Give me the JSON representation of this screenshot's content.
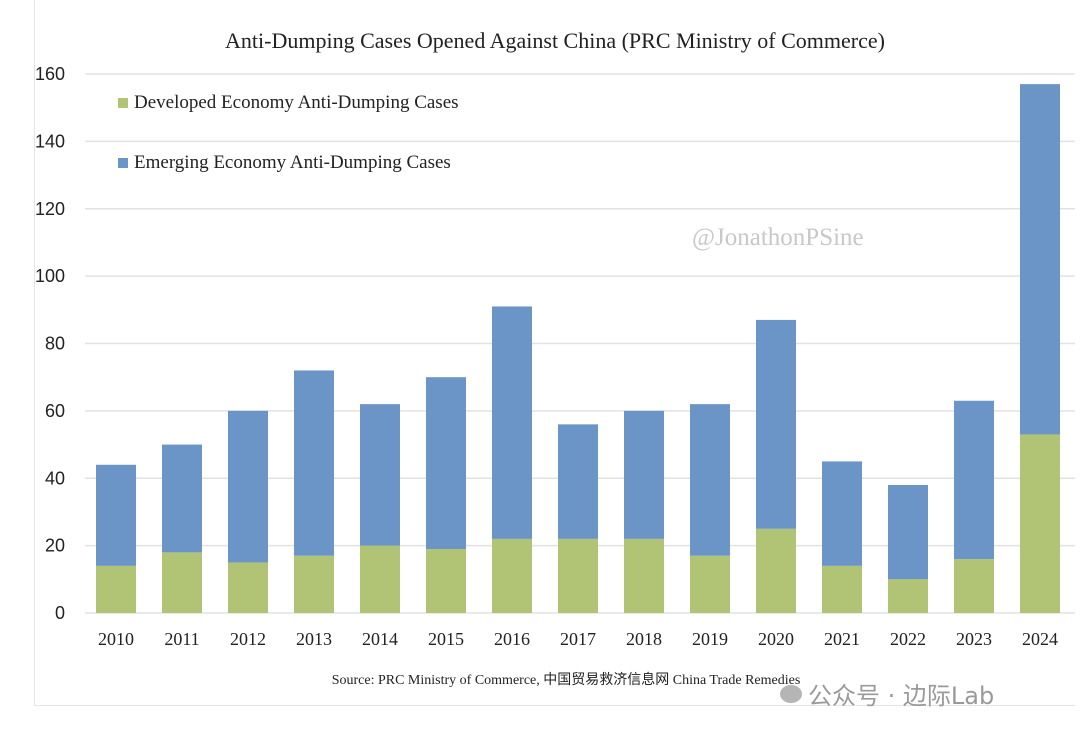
{
  "chart_data": {
    "type": "bar",
    "stacked": true,
    "title": "Anti-Dumping Cases Opened Against China (PRC Ministry of Commerce)",
    "xlabel": "",
    "ylabel": "",
    "ylim": [
      0,
      160
    ],
    "yticks": [
      0,
      20,
      40,
      60,
      80,
      100,
      120,
      140,
      160
    ],
    "grid": true,
    "legend_position": "top-left",
    "categories": [
      "2010",
      "2011",
      "2012",
      "2013",
      "2014",
      "2015",
      "2016",
      "2017",
      "2018",
      "2019",
      "2020",
      "2021",
      "2022",
      "2023",
      "2024"
    ],
    "series": [
      {
        "name": "Developed Economy Anti-Dumping Cases",
        "color": "#b1c475",
        "values": [
          14,
          18,
          15,
          17,
          20,
          19,
          22,
          22,
          22,
          17,
          25,
          14,
          10,
          16,
          53
        ]
      },
      {
        "name": "Emerging Economy Anti-Dumping Cases",
        "color": "#6a95c6",
        "values": [
          30,
          32,
          45,
          55,
          42,
          51,
          69,
          34,
          38,
          45,
          62,
          31,
          28,
          47,
          104
        ]
      }
    ],
    "source": "Source: PRC Ministry of Commerce, 中国贸易救济信息网 China Trade Remedies"
  },
  "watermark": "@JonathonPSine",
  "footer_badge": "公众号 · 边际Lab"
}
